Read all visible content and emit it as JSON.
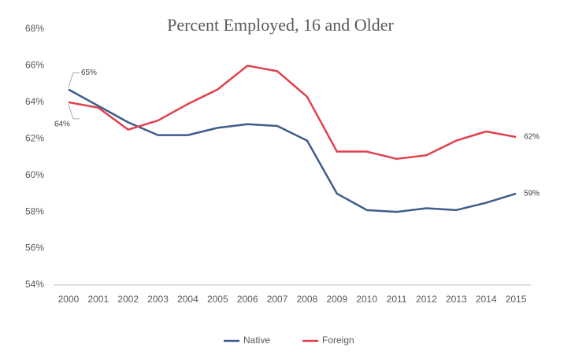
{
  "chart_data": {
    "type": "line",
    "title": "Percent Employed, 16 and Older",
    "categories": [
      "2000",
      "2001",
      "2002",
      "2003",
      "2004",
      "2005",
      "2006",
      "2007",
      "2008",
      "2009",
      "2010",
      "2011",
      "2012",
      "2013",
      "2014",
      "2015"
    ],
    "series": [
      {
        "name": "Native",
        "color": "#3e5c8c",
        "values": [
          64.7,
          63.8,
          62.9,
          62.2,
          62.2,
          62.6,
          62.8,
          62.7,
          61.9,
          59.0,
          58.1,
          58.0,
          58.2,
          58.1,
          58.5,
          59.0
        ],
        "value_labels": [
          "65%",
          null,
          null,
          null,
          null,
          null,
          null,
          null,
          null,
          null,
          null,
          null,
          null,
          null,
          null,
          "59%"
        ]
      },
      {
        "name": "Foreign",
        "color": "#e0414c",
        "values": [
          64.0,
          63.7,
          62.5,
          63.0,
          63.9,
          64.7,
          66.0,
          65.7,
          64.3,
          61.3,
          61.3,
          60.9,
          61.1,
          61.9,
          62.4,
          62.1
        ],
        "value_labels": [
          "64%",
          null,
          null,
          null,
          null,
          null,
          null,
          null,
          null,
          null,
          null,
          null,
          null,
          null,
          null,
          "62%"
        ]
      }
    ],
    "ylim": [
      54,
      68
    ],
    "yticks": [
      {
        "value": 54,
        "label": "54%"
      },
      {
        "value": 56,
        "label": "56%"
      },
      {
        "value": 58,
        "label": "58%"
      },
      {
        "value": 60,
        "label": "60%"
      },
      {
        "value": 62,
        "label": "62%"
      },
      {
        "value": 64,
        "label": "64%"
      },
      {
        "value": 66,
        "label": "66%"
      },
      {
        "value": 68,
        "label": "68%"
      }
    ],
    "grid": false,
    "legend": "bottom"
  }
}
